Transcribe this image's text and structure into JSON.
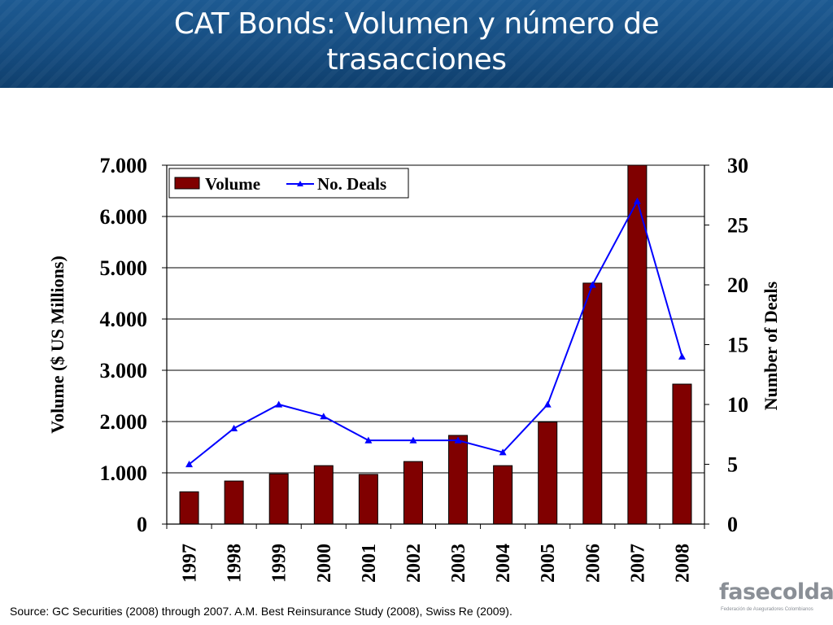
{
  "slide": {
    "title_line1": "CAT Bonds: Volumen y número de",
    "title_line2": "trasacciones",
    "source": "Source: GC Securities (2008) through 2007. A.M. Best Reinsurance Study (2008), Swiss Re (2009).",
    "logo_text": "fasecolda",
    "logo_tagline": "Federación de Aseguradores Colombianos"
  },
  "chart_data": {
    "type": "bar",
    "title": "",
    "categories": [
      "1997",
      "1998",
      "1999",
      "2000",
      "2001",
      "2002",
      "2003",
      "2004",
      "2005",
      "2006",
      "2007",
      "2008"
    ],
    "series": [
      {
        "name": "Volume",
        "type": "bar",
        "axis": "left",
        "color": "#800000",
        "values": [
          630,
          840,
          980,
          1140,
          970,
          1220,
          1730,
          1140,
          1990,
          4700,
          7000,
          2730
        ]
      },
      {
        "name": "No. Deals",
        "type": "line",
        "axis": "right",
        "color": "#0000ff",
        "marker": "triangle",
        "values": [
          5,
          8,
          10,
          9,
          7,
          7,
          7,
          6,
          10,
          20,
          27,
          14
        ]
      }
    ],
    "ylabel": "Volume ($ US Millions)",
    "y2label": "Number of Deals",
    "xlabel": "",
    "ylim": [
      0,
      7000
    ],
    "y2lim": [
      0,
      30
    ],
    "yticks": [
      0,
      1000,
      2000,
      3000,
      4000,
      5000,
      6000,
      7000
    ],
    "ytick_labels": [
      "0",
      "1.000",
      "2.000",
      "3.000",
      "4.000",
      "5.000",
      "6.000",
      "7.000"
    ],
    "y2ticks": [
      0,
      5,
      10,
      15,
      20,
      25,
      30
    ],
    "y2tick_labels": [
      "0",
      "5",
      "10",
      "15",
      "20",
      "25",
      "30"
    ],
    "grid": true,
    "legend": "top-left"
  }
}
